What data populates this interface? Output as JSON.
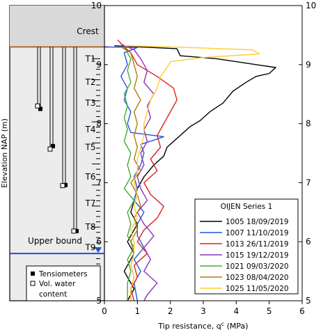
{
  "chart_data": {
    "type": "line",
    "xlabel": "Tip resistance, q",
    "xlabel_sub": "c",
    "xlabel_unit": " (MPa)",
    "ylabel": "Elevation NAP (m)",
    "xlim": [
      0,
      6
    ],
    "ylim": [
      5,
      10
    ],
    "x_ticks": [
      "0",
      "1",
      "2",
      "3",
      "4",
      "5",
      "6"
    ],
    "y_ticks": [
      "5",
      "6",
      "7",
      "8",
      "9",
      "10"
    ],
    "grid": false,
    "legend": {
      "title": "OIJEN Series 1",
      "placement": "bottom-right"
    },
    "crest": {
      "label": "Crest",
      "elevation": 9.3
    },
    "upper_bound": {
      "label": "Upper bound",
      "elevation": 5.8
    },
    "layers": [
      {
        "label": "T1",
        "elevation": 9.1
      },
      {
        "label": "T2",
        "elevation": 8.7
      },
      {
        "label": "T3",
        "elevation": 8.35
      },
      {
        "label": "T4",
        "elevation": 7.9
      },
      {
        "label": "T5",
        "elevation": 7.6
      },
      {
        "label": "T6",
        "elevation": 7.1
      },
      {
        "label": "T7",
        "elevation": 6.65
      },
      {
        "label": "T8",
        "elevation": 6.25
      },
      {
        "label": "T9",
        "elevation": 5.9
      }
    ],
    "instrument_legend": [
      {
        "label": "Tensiometers",
        "marker": "filled-square"
      },
      {
        "label": "Vol. water content",
        "marker": "open-square"
      }
    ],
    "instruments": [
      {
        "type": "tensiometer",
        "elevation": 8.25
      },
      {
        "type": "tensiometer",
        "elevation": 7.62
      },
      {
        "type": "tensiometer",
        "elevation": 6.96
      },
      {
        "type": "tensiometer",
        "elevation": 6.18
      },
      {
        "type": "vwc",
        "elevation": 8.3
      },
      {
        "type": "vwc",
        "elevation": 7.57
      },
      {
        "type": "vwc",
        "elevation": 6.95
      },
      {
        "type": "vwc",
        "elevation": 6.18
      }
    ],
    "series": [
      {
        "name": "1005 18/09/2019",
        "color": "#000000",
        "points": [
          [
            0.3,
            9.32
          ],
          [
            2.2,
            9.27
          ],
          [
            2.3,
            9.15
          ],
          [
            3.4,
            9.1
          ],
          [
            4.6,
            9.0
          ],
          [
            5.2,
            8.95
          ],
          [
            5.0,
            8.85
          ],
          [
            4.6,
            8.8
          ],
          [
            4.3,
            8.7
          ],
          [
            3.9,
            8.55
          ],
          [
            3.6,
            8.35
          ],
          [
            3.2,
            8.2
          ],
          [
            2.9,
            8.05
          ],
          [
            2.6,
            7.95
          ],
          [
            2.2,
            7.75
          ],
          [
            1.9,
            7.6
          ],
          [
            1.8,
            7.45
          ],
          [
            1.5,
            7.3
          ],
          [
            1.2,
            7.1
          ],
          [
            1.0,
            6.9
          ],
          [
            0.9,
            6.7
          ],
          [
            0.8,
            6.5
          ],
          [
            1.0,
            6.3
          ],
          [
            0.7,
            6.0
          ],
          [
            0.9,
            5.8
          ],
          [
            0.6,
            5.5
          ],
          [
            0.9,
            5.2
          ],
          [
            0.7,
            5.0
          ]
        ]
      },
      {
        "name": "1007 11/10/2019",
        "color": "#2255dd",
        "points": [
          [
            0.0,
            9.3
          ],
          [
            1.0,
            9.29
          ],
          [
            0.6,
            9.2
          ],
          [
            0.7,
            9.0
          ],
          [
            0.5,
            8.8
          ],
          [
            0.7,
            8.6
          ],
          [
            0.6,
            8.4
          ],
          [
            0.8,
            8.2
          ],
          [
            0.7,
            8.0
          ],
          [
            0.8,
            7.85
          ],
          [
            1.5,
            7.8
          ],
          [
            1.8,
            7.78
          ],
          [
            1.5,
            7.72
          ],
          [
            1.1,
            7.65
          ],
          [
            1.2,
            7.5
          ],
          [
            1.1,
            7.3
          ],
          [
            0.9,
            7.1
          ],
          [
            1.0,
            6.9
          ],
          [
            0.9,
            6.7
          ],
          [
            1.2,
            6.5
          ],
          [
            1.0,
            6.3
          ],
          [
            1.0,
            6.1
          ],
          [
            1.2,
            5.9
          ],
          [
            0.9,
            5.7
          ],
          [
            1.1,
            5.5
          ],
          [
            0.9,
            5.3
          ],
          [
            1.0,
            5.0
          ]
        ]
      },
      {
        "name": "1013 26/11/2019",
        "color": "#dd2222",
        "points": [
          [
            0.4,
            9.42
          ],
          [
            0.6,
            9.3
          ],
          [
            0.8,
            9.2
          ],
          [
            1.0,
            9.0
          ],
          [
            1.6,
            8.8
          ],
          [
            2.1,
            8.6
          ],
          [
            2.2,
            8.4
          ],
          [
            2.0,
            8.2
          ],
          [
            1.8,
            8.0
          ],
          [
            1.6,
            7.8
          ],
          [
            1.7,
            7.6
          ],
          [
            1.4,
            7.4
          ],
          [
            1.6,
            7.2
          ],
          [
            1.2,
            7.0
          ],
          [
            1.4,
            6.8
          ],
          [
            1.8,
            6.6
          ],
          [
            1.6,
            6.4
          ],
          [
            1.2,
            6.2
          ],
          [
            1.0,
            6.0
          ],
          [
            1.3,
            5.8
          ],
          [
            0.9,
            5.6
          ],
          [
            1.0,
            5.4
          ],
          [
            0.8,
            5.2
          ],
          [
            0.9,
            5.0
          ]
        ]
      },
      {
        "name": "1015 19/12/2019",
        "color": "#8833bb",
        "points": [
          [
            0.5,
            9.35
          ],
          [
            0.9,
            9.25
          ],
          [
            1.1,
            9.1
          ],
          [
            1.3,
            8.9
          ],
          [
            1.2,
            8.7
          ],
          [
            1.5,
            8.5
          ],
          [
            1.3,
            8.3
          ],
          [
            1.4,
            8.1
          ],
          [
            1.2,
            7.9
          ],
          [
            1.3,
            7.7
          ],
          [
            1.1,
            7.5
          ],
          [
            1.2,
            7.3
          ],
          [
            1.0,
            7.1
          ],
          [
            1.1,
            6.9
          ],
          [
            1.3,
            6.7
          ],
          [
            1.0,
            6.5
          ],
          [
            1.2,
            6.3
          ],
          [
            1.5,
            6.1
          ],
          [
            1.2,
            5.9
          ],
          [
            1.4,
            5.7
          ],
          [
            1.2,
            5.5
          ],
          [
            1.6,
            5.3
          ],
          [
            1.3,
            5.1
          ],
          [
            1.2,
            5.0
          ]
        ]
      },
      {
        "name": "1021 09/03/2020",
        "color": "#44aa33",
        "points": [
          [
            0.6,
            9.3
          ],
          [
            0.8,
            9.1
          ],
          [
            0.7,
            8.9
          ],
          [
            0.8,
            8.7
          ],
          [
            0.6,
            8.5
          ],
          [
            0.7,
            8.3
          ],
          [
            0.6,
            8.1
          ],
          [
            0.7,
            7.9
          ],
          [
            0.6,
            7.7
          ],
          [
            0.8,
            7.5
          ],
          [
            0.7,
            7.3
          ],
          [
            0.8,
            7.1
          ],
          [
            0.6,
            6.9
          ],
          [
            0.9,
            6.7
          ],
          [
            0.7,
            6.5
          ],
          [
            0.8,
            6.3
          ],
          [
            0.7,
            6.1
          ],
          [
            0.9,
            5.9
          ],
          [
            0.7,
            5.7
          ],
          [
            0.8,
            5.5
          ],
          [
            0.7,
            5.3
          ],
          [
            0.7,
            5.0
          ]
        ]
      },
      {
        "name": "1023 08/04/2020",
        "color": "#b07a10",
        "points": [
          [
            0.5,
            9.3
          ],
          [
            0.8,
            9.2
          ],
          [
            0.9,
            9.0
          ],
          [
            1.0,
            8.8
          ],
          [
            0.9,
            8.6
          ],
          [
            1.1,
            8.4
          ],
          [
            0.9,
            8.2
          ],
          [
            1.0,
            8.0
          ],
          [
            0.9,
            7.8
          ],
          [
            1.0,
            7.6
          ],
          [
            0.9,
            7.4
          ],
          [
            1.1,
            7.2
          ],
          [
            0.8,
            7.0
          ],
          [
            1.0,
            6.8
          ],
          [
            1.1,
            6.6
          ],
          [
            0.9,
            6.4
          ],
          [
            1.0,
            6.2
          ],
          [
            0.8,
            6.0
          ],
          [
            0.9,
            5.8
          ],
          [
            0.8,
            5.6
          ],
          [
            0.9,
            5.4
          ],
          [
            0.8,
            5.2
          ],
          [
            0.8,
            5.0
          ]
        ]
      },
      {
        "name": "1025 11/05/2020",
        "color": "#ffcc33",
        "points": [
          [
            0.6,
            9.32
          ],
          [
            2.0,
            9.3
          ],
          [
            4.5,
            9.25
          ],
          [
            4.7,
            9.18
          ],
          [
            3.0,
            9.12
          ],
          [
            2.0,
            9.05
          ],
          [
            1.9,
            8.95
          ],
          [
            1.7,
            8.8
          ],
          [
            1.6,
            8.6
          ],
          [
            1.4,
            8.4
          ],
          [
            1.3,
            8.2
          ],
          [
            1.2,
            8.0
          ],
          [
            1.2,
            7.8
          ],
          [
            1.1,
            7.6
          ],
          [
            1.0,
            7.4
          ],
          [
            1.0,
            7.2
          ],
          [
            0.9,
            7.0
          ],
          [
            1.0,
            6.8
          ],
          [
            0.9,
            6.6
          ],
          [
            1.0,
            6.4
          ],
          [
            0.8,
            6.2
          ],
          [
            0.9,
            6.0
          ],
          [
            0.9,
            5.8
          ],
          [
            0.8,
            5.6
          ],
          [
            0.9,
            5.4
          ],
          [
            0.8,
            5.2
          ],
          [
            0.8,
            5.0
          ]
        ]
      }
    ]
  }
}
